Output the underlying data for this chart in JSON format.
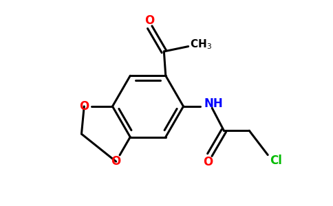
{
  "bg_color": "#ffffff",
  "bond_color": "#000000",
  "O_color": "#ff0000",
  "N_color": "#0000ff",
  "Cl_color": "#00bb00",
  "line_width": 2.2,
  "fig_width": 4.84,
  "fig_height": 3.0,
  "dpi": 100,
  "xlim": [
    0,
    9.5
  ],
  "ylim": [
    0,
    6.0
  ]
}
